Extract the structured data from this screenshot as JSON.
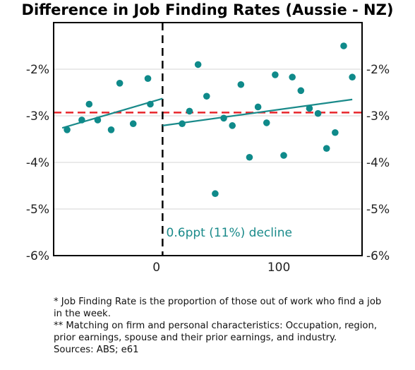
{
  "chart_data": {
    "type": "scatter",
    "title": "Difference in Job Finding Rates (Aussie - NZ)",
    "xlabel": "",
    "ylabel": "",
    "x_ticks": [
      0,
      100
    ],
    "x_tick_labels": [
      "0",
      "100"
    ],
    "y_ticks": [
      -6,
      -5,
      -4,
      -3,
      -2
    ],
    "y_tick_labels": [
      "-6%",
      "-5%",
      "-4%",
      "-3%",
      "-2%"
    ],
    "xlim": [
      -84,
      168
    ],
    "ylim": [
      -6,
      -1
    ],
    "grid": "horizontal",
    "points": [
      {
        "x": -73,
        "y": -3.3
      },
      {
        "x": -61,
        "y": -3.09
      },
      {
        "x": -55,
        "y": -2.75
      },
      {
        "x": -48,
        "y": -3.09
      },
      {
        "x": -37,
        "y": -3.3
      },
      {
        "x": -30,
        "y": -2.3
      },
      {
        "x": -19,
        "y": -3.17
      },
      {
        "x": -7,
        "y": -2.2
      },
      {
        "x": -5,
        "y": -2.75
      },
      {
        "x": 21,
        "y": -3.17
      },
      {
        "x": 27,
        "y": -2.9
      },
      {
        "x": 34,
        "y": -1.9
      },
      {
        "x": 41,
        "y": -2.58
      },
      {
        "x": 48,
        "y": -4.67
      },
      {
        "x": 55,
        "y": -3.05
      },
      {
        "x": 62,
        "y": -3.21
      },
      {
        "x": 69,
        "y": -2.33
      },
      {
        "x": 76,
        "y": -3.89
      },
      {
        "x": 83,
        "y": -2.81
      },
      {
        "x": 90,
        "y": -3.15
      },
      {
        "x": 97,
        "y": -2.12
      },
      {
        "x": 104,
        "y": -3.85
      },
      {
        "x": 111,
        "y": -2.17
      },
      {
        "x": 118,
        "y": -2.46
      },
      {
        "x": 125,
        "y": -2.84
      },
      {
        "x": 132,
        "y": -2.95
      },
      {
        "x": 139,
        "y": -3.7
      },
      {
        "x": 146,
        "y": -3.36
      },
      {
        "x": 153,
        "y": -1.5
      },
      {
        "x": 160,
        "y": -2.17
      }
    ],
    "trend_lines": [
      {
        "x": [
          -77,
          5
        ],
        "y": [
          -3.26,
          -2.63
        ]
      },
      {
        "x": [
          5,
          160
        ],
        "y": [
          -3.21,
          -2.65
        ]
      }
    ],
    "reference_line": {
      "y": -2.93,
      "color": "#e8252b",
      "style": "dashed"
    },
    "vertical_line": {
      "x": 5,
      "color": "#000000",
      "style": "dashed"
    },
    "annotation": {
      "text": "0.6ppt (11%) decline",
      "x": 8,
      "y": -5.5
    },
    "colors": {
      "points": "#0f8a8a",
      "trend": "#1a8a8a",
      "reference": "#e8252b",
      "grid": "#d4d4d4"
    }
  },
  "notes": [
    "* Job Finding Rate is the proportion of those out of work who find a job in the week.",
    "** Matching on firm and personal characteristics: Occupation, region, prior earnings, spouse and their prior earnings, and industry.",
    "Sources: ABS; e61"
  ]
}
